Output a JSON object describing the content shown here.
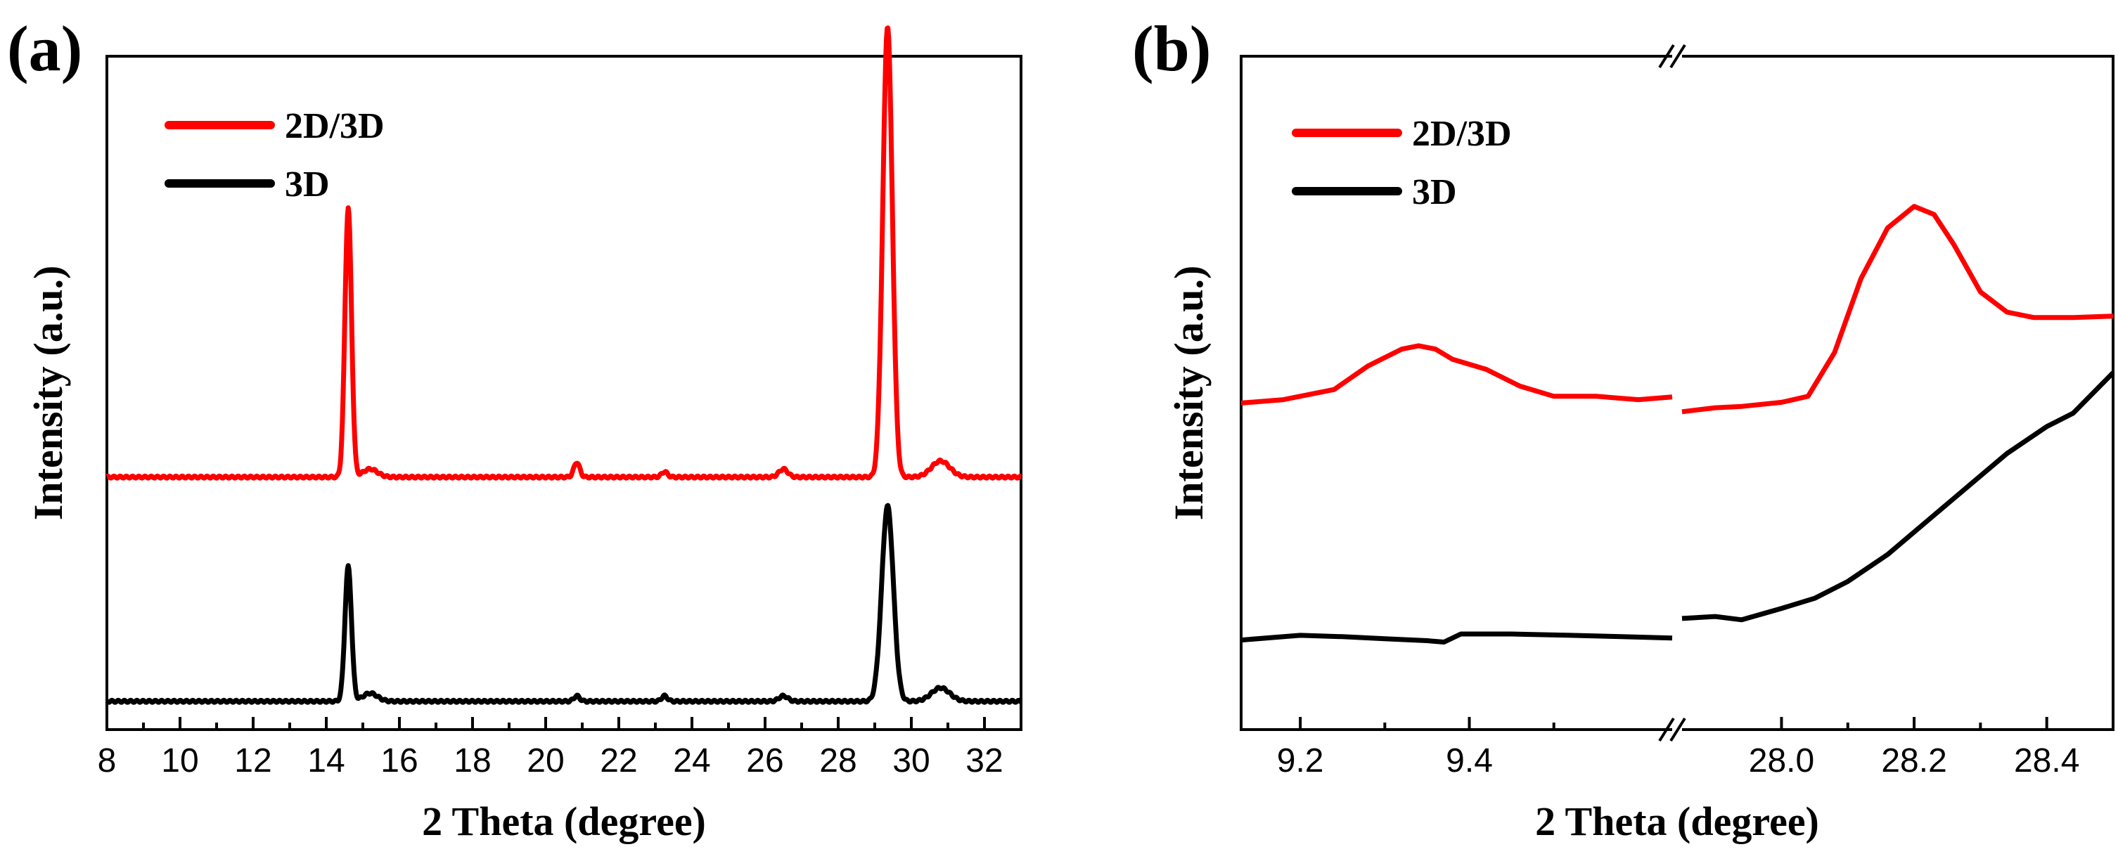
{
  "chart_data": [
    {
      "panel_label": "(a)",
      "type": "line",
      "xlabel": "2 Theta (degree)",
      "ylabel": "Intensity (a.u.)",
      "xlim": [
        8,
        33
      ],
      "ylim": [
        0,
        1
      ],
      "xticks": [
        8,
        10,
        12,
        14,
        16,
        18,
        20,
        22,
        24,
        26,
        28,
        30,
        32
      ],
      "xtick_labels": [
        "8",
        "10",
        "12",
        "14",
        "16",
        "18",
        "20",
        "22",
        "24",
        "26",
        "28",
        "30",
        "32"
      ],
      "legend_position": "top-left",
      "series": [
        {
          "name": "2D/3D",
          "color": "#ff0000",
          "baseline": 0.375,
          "peaks": [
            {
              "x": 14.6,
              "height": 0.4,
              "width": 0.09
            },
            {
              "x": 15.2,
              "height": 0.012,
              "width": 0.2
            },
            {
              "x": 20.85,
              "height": 0.022,
              "width": 0.08
            },
            {
              "x": 23.25,
              "height": 0.008,
              "width": 0.08
            },
            {
              "x": 26.5,
              "height": 0.012,
              "width": 0.12
            },
            {
              "x": 29.35,
              "height": 0.67,
              "width": 0.13
            },
            {
              "x": 30.8,
              "height": 0.024,
              "width": 0.25
            }
          ]
        },
        {
          "name": "3D",
          "color": "#000000",
          "baseline": 0.042,
          "peaks": [
            {
              "x": 14.6,
              "height": 0.2,
              "width": 0.09
            },
            {
              "x": 15.2,
              "height": 0.012,
              "width": 0.2
            },
            {
              "x": 20.85,
              "height": 0.008,
              "width": 0.08
            },
            {
              "x": 23.25,
              "height": 0.008,
              "width": 0.08
            },
            {
              "x": 26.5,
              "height": 0.008,
              "width": 0.12
            },
            {
              "x": 29.35,
              "height": 0.29,
              "width": 0.16
            },
            {
              "x": 30.8,
              "height": 0.02,
              "width": 0.25
            }
          ]
        }
      ]
    },
    {
      "panel_label": "(b)",
      "type": "line",
      "xlabel": "2 Theta (degree)",
      "ylabel": "Intensity (a.u.)",
      "broken_axis": true,
      "segments": [
        {
          "xlim": [
            9.13,
            9.64
          ],
          "xticks": [
            9.2,
            9.4
          ],
          "xtick_labels": [
            "9.2",
            "9.4"
          ]
        },
        {
          "xlim": [
            27.85,
            28.5
          ],
          "xticks": [
            28.0,
            28.2,
            28.4
          ],
          "xtick_labels": [
            "28.0",
            "28.2",
            "28.4"
          ]
        }
      ],
      "ylim": [
        0,
        1
      ],
      "legend_position": "top-left",
      "series": [
        {
          "name": "2D/3D",
          "color": "#ff0000",
          "segment_points": [
            [
              [
                9.13,
                0.485
              ],
              [
                9.18,
                0.49
              ],
              [
                9.24,
                0.505
              ],
              [
                9.28,
                0.54
              ],
              [
                9.32,
                0.565
              ],
              [
                9.34,
                0.57
              ],
              [
                9.36,
                0.565
              ],
              [
                9.38,
                0.55
              ],
              [
                9.42,
                0.535
              ],
              [
                9.46,
                0.51
              ],
              [
                9.5,
                0.495
              ],
              [
                9.55,
                0.495
              ],
              [
                9.6,
                0.49
              ],
              [
                9.64,
                0.494
              ]
            ],
            [
              [
                27.85,
                0.472
              ],
              [
                27.9,
                0.478
              ],
              [
                27.94,
                0.48
              ],
              [
                28.0,
                0.486
              ],
              [
                28.04,
                0.495
              ],
              [
                28.08,
                0.56
              ],
              [
                28.12,
                0.67
              ],
              [
                28.16,
                0.745
              ],
              [
                28.2,
                0.777
              ],
              [
                28.23,
                0.765
              ],
              [
                28.26,
                0.72
              ],
              [
                28.3,
                0.65
              ],
              [
                28.34,
                0.62
              ],
              [
                28.38,
                0.612
              ],
              [
                28.44,
                0.612
              ],
              [
                28.5,
                0.614
              ]
            ]
          ]
        },
        {
          "name": "3D",
          "color": "#000000",
          "segment_points": [
            [
              [
                9.13,
                0.133
              ],
              [
                9.2,
                0.14
              ],
              [
                9.25,
                0.138
              ],
              [
                9.3,
                0.135
              ],
              [
                9.35,
                0.132
              ],
              [
                9.37,
                0.13
              ],
              [
                9.39,
                0.142
              ],
              [
                9.45,
                0.142
              ],
              [
                9.52,
                0.14
              ],
              [
                9.58,
                0.138
              ],
              [
                9.64,
                0.136
              ]
            ],
            [
              [
                27.85,
                0.165
              ],
              [
                27.9,
                0.168
              ],
              [
                27.94,
                0.163
              ],
              [
                28.0,
                0.18
              ],
              [
                28.05,
                0.195
              ],
              [
                28.1,
                0.22
              ],
              [
                28.16,
                0.26
              ],
              [
                28.22,
                0.31
              ],
              [
                28.28,
                0.36
              ],
              [
                28.34,
                0.41
              ],
              [
                28.4,
                0.45
              ],
              [
                28.44,
                0.47
              ],
              [
                28.5,
                0.53
              ]
            ]
          ]
        }
      ]
    }
  ]
}
